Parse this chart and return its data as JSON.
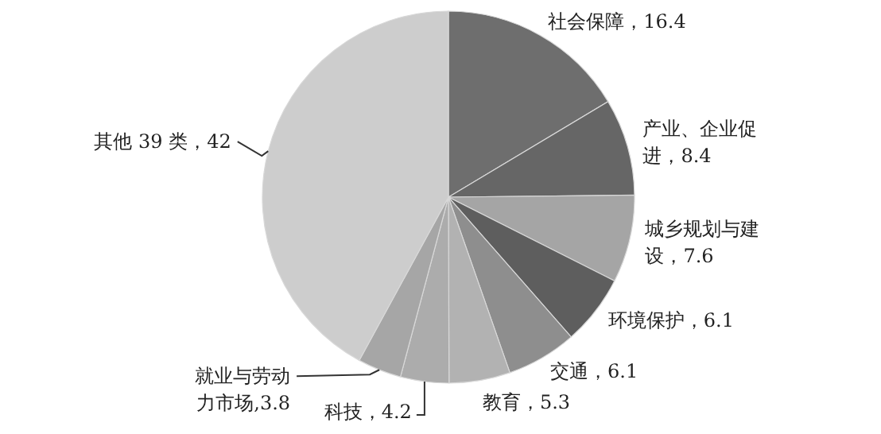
{
  "chart_data": {
    "type": "pie",
    "categories": [
      "社会保障",
      "产业、企业促进",
      "城乡规划与建设",
      "环境保护",
      "交通",
      "教育",
      "科技",
      "就业与劳动力市场",
      "其他 39 类"
    ],
    "values": [
      16.4,
      8.4,
      7.6,
      6.1,
      6.1,
      5.3,
      4.2,
      3.8,
      42
    ],
    "value_labels": [
      "，16.4",
      "，8.4",
      "，7.6",
      "，6.1",
      "，6.1",
      "，5.3",
      "，4.2",
      ",3.8",
      "，42"
    ],
    "colors": [
      "#6e6e6e",
      "#666666",
      "#a5a5a5",
      "#5e5e5e",
      "#8e8e8e",
      "#b2b2b2",
      "#acacac",
      "#a6a6a6",
      "#cdcdcd"
    ]
  }
}
